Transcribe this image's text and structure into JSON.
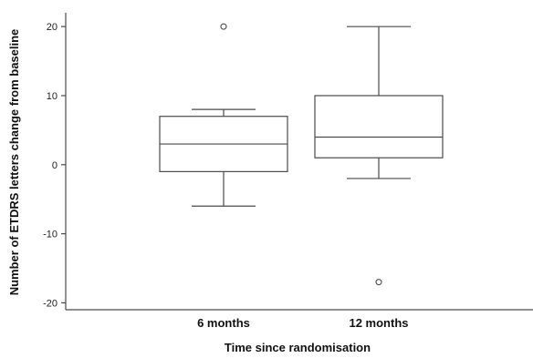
{
  "chart_data": {
    "type": "box",
    "title": "",
    "xlabel": "Time since randomisation",
    "ylabel": "Number of ETDRS letters change from baseline",
    "ylim": [
      -21,
      22
    ],
    "yticks": [
      20,
      10,
      0,
      -10,
      -20
    ],
    "grid": false,
    "categories": [
      "6 months",
      "12 months"
    ],
    "boxes": [
      {
        "category": "6 months",
        "whisker_low": -6,
        "q1": -1,
        "median": 3,
        "q3": 7,
        "whisker_high": 8,
        "outliers": [
          20
        ]
      },
      {
        "category": "12 months",
        "whisker_low": -2,
        "q1": 1,
        "median": 4,
        "q3": 10,
        "whisker_high": 20,
        "outliers": [
          -17
        ]
      }
    ],
    "colors": {
      "stroke": "#4a4a4a",
      "box_fill": "#ffffff",
      "text": "#111111"
    }
  }
}
